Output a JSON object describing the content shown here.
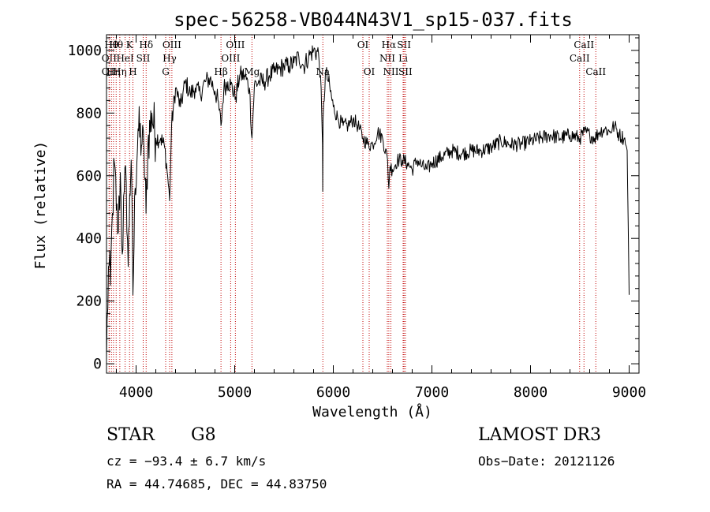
{
  "chart_data": {
    "type": "line",
    "title": "spec-56258-VB044N43V1_sp15-037.fits",
    "xlabel": "Wavelength (Å)",
    "ylabel": "Flux (relative)",
    "xlim": [
      3700,
      9100
    ],
    "ylim": [
      -30,
      1050
    ],
    "xticks": [
      4000,
      5000,
      6000,
      7000,
      8000,
      9000
    ],
    "yticks": [
      0,
      200,
      400,
      600,
      800,
      1000
    ],
    "line_color": "#000000",
    "marker_color": "#c00000",
    "series": [
      {
        "name": "flux",
        "x": [
          3700,
          3720,
          3740,
          3760,
          3780,
          3800,
          3820,
          3840,
          3860,
          3880,
          3900,
          3920,
          3935,
          3950,
          3968,
          3990,
          4020,
          4060,
          4080,
          4101,
          4120,
          4160,
          4200,
          4250,
          4290,
          4320,
          4340,
          4360,
          4400,
          4450,
          4500,
          4550,
          4600,
          4650,
          4700,
          4750,
          4800,
          4830,
          4861,
          4890,
          4930,
          4960,
          5010,
          5050,
          5100,
          5150,
          5175,
          5200,
          5250,
          5300,
          5350,
          5400,
          5450,
          5500,
          5550,
          5600,
          5650,
          5700,
          5750,
          5800,
          5850,
          5870,
          5890,
          5893,
          5896,
          5920,
          5950,
          6000,
          6050,
          6100,
          6150,
          6200,
          6250,
          6300,
          6350,
          6400,
          6450,
          6500,
          6550,
          6563,
          6575,
          6600,
          6650,
          6700,
          6750,
          6800,
          6850,
          6900,
          6950,
          7000,
          7100,
          7200,
          7300,
          7400,
          7500,
          7600,
          7700,
          7800,
          7900,
          8000,
          8100,
          8200,
          8300,
          8400,
          8500,
          8550,
          8600,
          8650,
          8700,
          8750,
          8800,
          8850,
          8900,
          8950,
          8980,
          8990,
          9000
        ],
        "values": [
          20,
          310,
          250,
          480,
          640,
          490,
          420,
          610,
          350,
          550,
          580,
          310,
          540,
          650,
          220,
          560,
          750,
          700,
          680,
          480,
          700,
          800,
          720,
          720,
          690,
          600,
          520,
          760,
          880,
          820,
          900,
          860,
          880,
          860,
          900,
          910,
          870,
          840,
          760,
          880,
          900,
          890,
          850,
          920,
          920,
          880,
          720,
          890,
          900,
          900,
          920,
          930,
          940,
          950,
          950,
          960,
          980,
          950,
          980,
          1000,
          990,
          920,
          700,
          550,
          780,
          930,
          900,
          820,
          780,
          760,
          760,
          780,
          760,
          720,
          700,
          700,
          740,
          720,
          650,
          560,
          630,
          620,
          650,
          650,
          640,
          620,
          650,
          630,
          620,
          640,
          660,
          680,
          670,
          680,
          680,
          690,
          710,
          700,
          700,
          710,
          720,
          730,
          720,
          730,
          720,
          740,
          730,
          720,
          740,
          750,
          740,
          760,
          730,
          720,
          680,
          450,
          220
        ]
      }
    ],
    "line_markers": [
      {
        "wavelength": 3727,
        "label": "OII",
        "row": 1
      },
      {
        "wavelength": 3727,
        "label": "OII",
        "row": 2
      },
      {
        "wavelength": 3750,
        "label": "Hθ",
        "row": 0
      },
      {
        "wavelength": 3771,
        "label": "Hη",
        "row": 2
      },
      {
        "wavelength": 3798,
        "label": "Hθ",
        "row": 0
      },
      {
        "wavelength": 3835,
        "label": "Hη",
        "row": 2
      },
      {
        "wavelength": 3889,
        "label": "HeI",
        "row": 1
      },
      {
        "wavelength": 3934,
        "label": "K",
        "row": 0
      },
      {
        "wavelength": 3968,
        "label": "H",
        "row": 2
      },
      {
        "wavelength": 4072,
        "label": "SII",
        "row": 1
      },
      {
        "wavelength": 4102,
        "label": "Hδ",
        "row": 0
      },
      {
        "wavelength": 4300,
        "label": "G",
        "row": 2
      },
      {
        "wavelength": 4340,
        "label": "Hγ",
        "row": 1
      },
      {
        "wavelength": 4363,
        "label": "OIII",
        "row": 0
      },
      {
        "wavelength": 4861,
        "label": "Hβ",
        "row": 2
      },
      {
        "wavelength": 4959,
        "label": "OIII",
        "row": 1
      },
      {
        "wavelength": 5007,
        "label": "OIII",
        "row": 0
      },
      {
        "wavelength": 5175,
        "label": "Mg",
        "row": 2
      },
      {
        "wavelength": 5894,
        "label": "Na",
        "row": 2
      },
      {
        "wavelength": 6300,
        "label": "OI",
        "row": 0
      },
      {
        "wavelength": 6364,
        "label": "OI",
        "row": 2
      },
      {
        "wavelength": 6548,
        "label": "NII",
        "row": 1
      },
      {
        "wavelength": 6563,
        "label": "Hα",
        "row": 0
      },
      {
        "wavelength": 6584,
        "label": "NII",
        "row": 2
      },
      {
        "wavelength": 6708,
        "label": "Li",
        "row": 1
      },
      {
        "wavelength": 6717,
        "label": "SII",
        "row": 0
      },
      {
        "wavelength": 6731,
        "label": "SII",
        "row": 2
      },
      {
        "wavelength": 8498,
        "label": "CaII",
        "row": 1
      },
      {
        "wavelength": 8542,
        "label": "CaII",
        "row": 0
      },
      {
        "wavelength": 8662,
        "label": "CaII",
        "row": 2
      }
    ]
  },
  "info": {
    "class": "STAR",
    "subclass": "G8",
    "survey": "LAMOST DR3",
    "cz": "cz = −93.4 ± 6.7 km/s",
    "obs_date": "Obs−Date: 20121126",
    "coords": "RA =  44.74685, DEC =  44.83750"
  }
}
